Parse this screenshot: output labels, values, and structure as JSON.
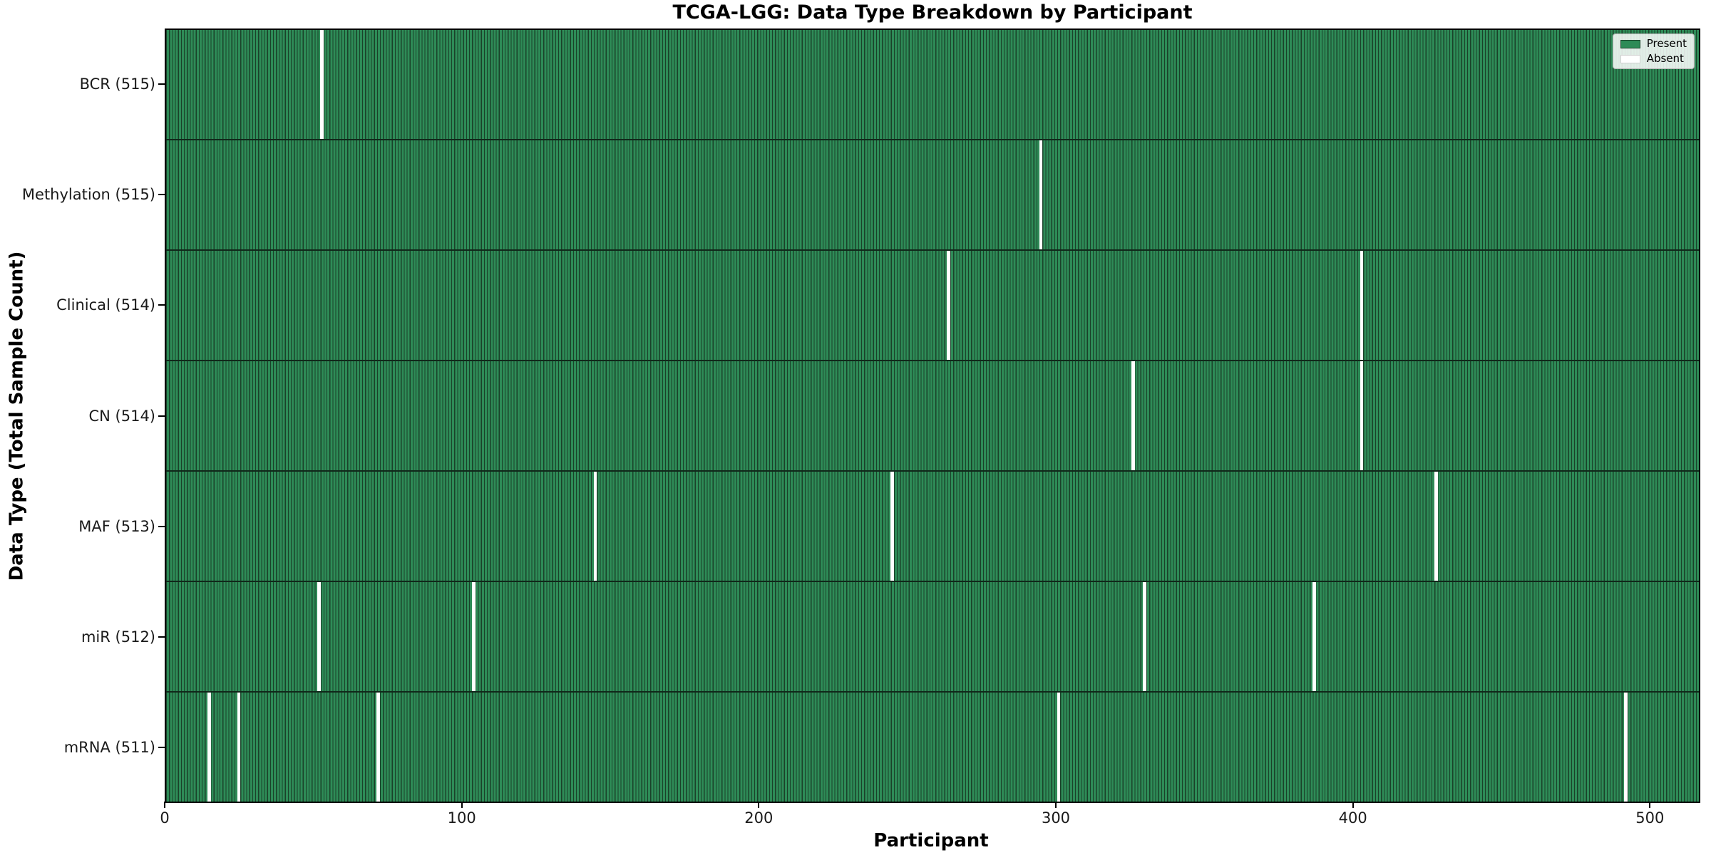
{
  "colors": {
    "present": "#2e8b57",
    "bar_edge": "#1a4129",
    "absent": "#ffffff",
    "row_divider": "#10281a",
    "spine": "#000000",
    "tick_label": "#1a1a1a",
    "legend_border": "#b3b3b3"
  },
  "chart_data": {
    "type": "heatmap",
    "title": "TCGA-LGG: Data Type Breakdown by Participant",
    "xlabel": "Participant",
    "ylabel": "Data Type (Total Sample Count)",
    "x_ticks": [
      0,
      100,
      200,
      300,
      400,
      500
    ],
    "x_range": [
      0,
      516
    ],
    "total_participants": 516,
    "grid": false,
    "legend_position": "upper right",
    "legend": [
      {
        "label": "Present",
        "color": "#2e8b57"
      },
      {
        "label": "Absent",
        "color": "#ffffff"
      }
    ],
    "rows": [
      {
        "data_type": "BCR",
        "count": 515,
        "tick_label": "BCR (515)",
        "absent_participants": [
          52
        ]
      },
      {
        "data_type": "Methylation",
        "count": 515,
        "tick_label": "Methylation (515)",
        "absent_participants": [
          294
        ]
      },
      {
        "data_type": "Clinical",
        "count": 514,
        "tick_label": "Clinical (514)",
        "absent_participants": [
          263,
          402
        ]
      },
      {
        "data_type": "CN",
        "count": 514,
        "tick_label": "CN (514)",
        "absent_participants": [
          325,
          402
        ]
      },
      {
        "data_type": "MAF",
        "count": 513,
        "tick_label": "MAF (513)",
        "absent_participants": [
          144,
          244,
          427
        ]
      },
      {
        "data_type": "miR",
        "count": 512,
        "tick_label": "miR (512)",
        "absent_participants": [
          51,
          103,
          329,
          386
        ]
      },
      {
        "data_type": "mRNA",
        "count": 511,
        "tick_label": "mRNA (511)",
        "absent_participants": [
          14,
          24,
          71,
          300,
          491
        ]
      }
    ]
  }
}
